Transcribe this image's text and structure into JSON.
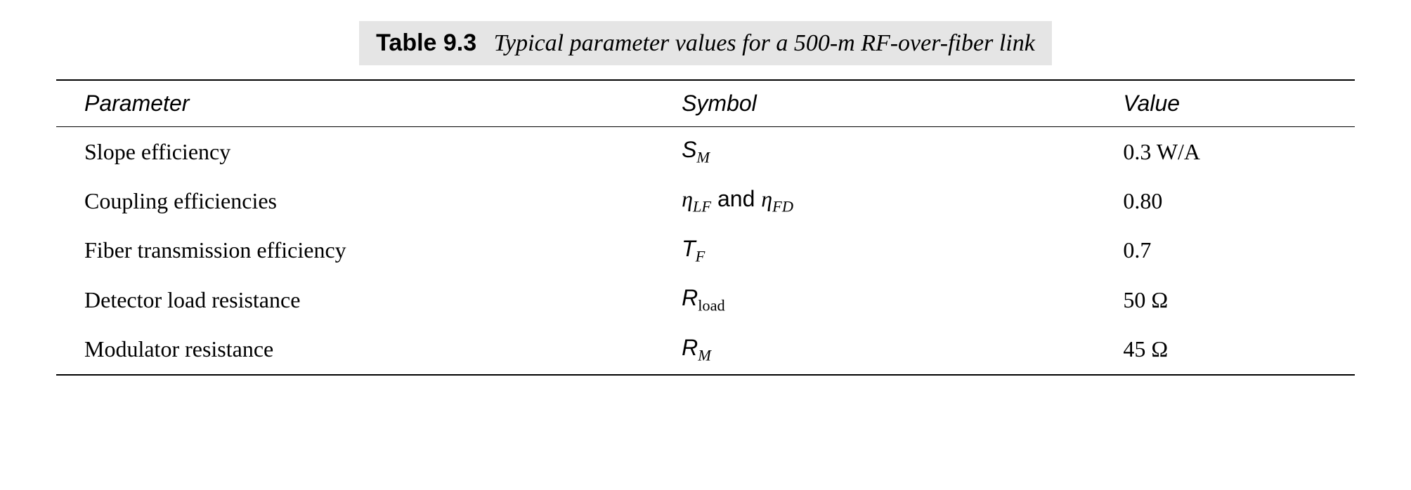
{
  "caption": {
    "label": "Table 9.3",
    "description": "Typical parameter values for a 500-m RF-over-fiber link"
  },
  "table": {
    "columns": [
      "Parameter",
      "Symbol",
      "Value"
    ],
    "rows": [
      {
        "parameter": "Slope efficiency",
        "symbol_base1": "S",
        "symbol_sub1": "M",
        "value": "0.3 W/A"
      },
      {
        "parameter": "Coupling efficiencies",
        "symbol_base1": "η",
        "symbol_sub1": "LF",
        "joiner": " and ",
        "symbol_base2": "η",
        "symbol_sub2": "FD",
        "value": "0.80"
      },
      {
        "parameter": "Fiber transmission efficiency",
        "symbol_base1": "T",
        "symbol_sub1": "F",
        "value": "0.7"
      },
      {
        "parameter": "Detector load resistance",
        "symbol_base1": "R",
        "symbol_sub1": "load",
        "value": "50 Ω"
      },
      {
        "parameter": "Modulator resistance",
        "symbol_base1": "R",
        "symbol_sub1": "M",
        "value": "45 Ω"
      }
    ]
  },
  "style": {
    "caption_bg": "#e5e5e5",
    "border_color": "#000000",
    "body_font_size": 32,
    "caption_font_size": 34
  }
}
